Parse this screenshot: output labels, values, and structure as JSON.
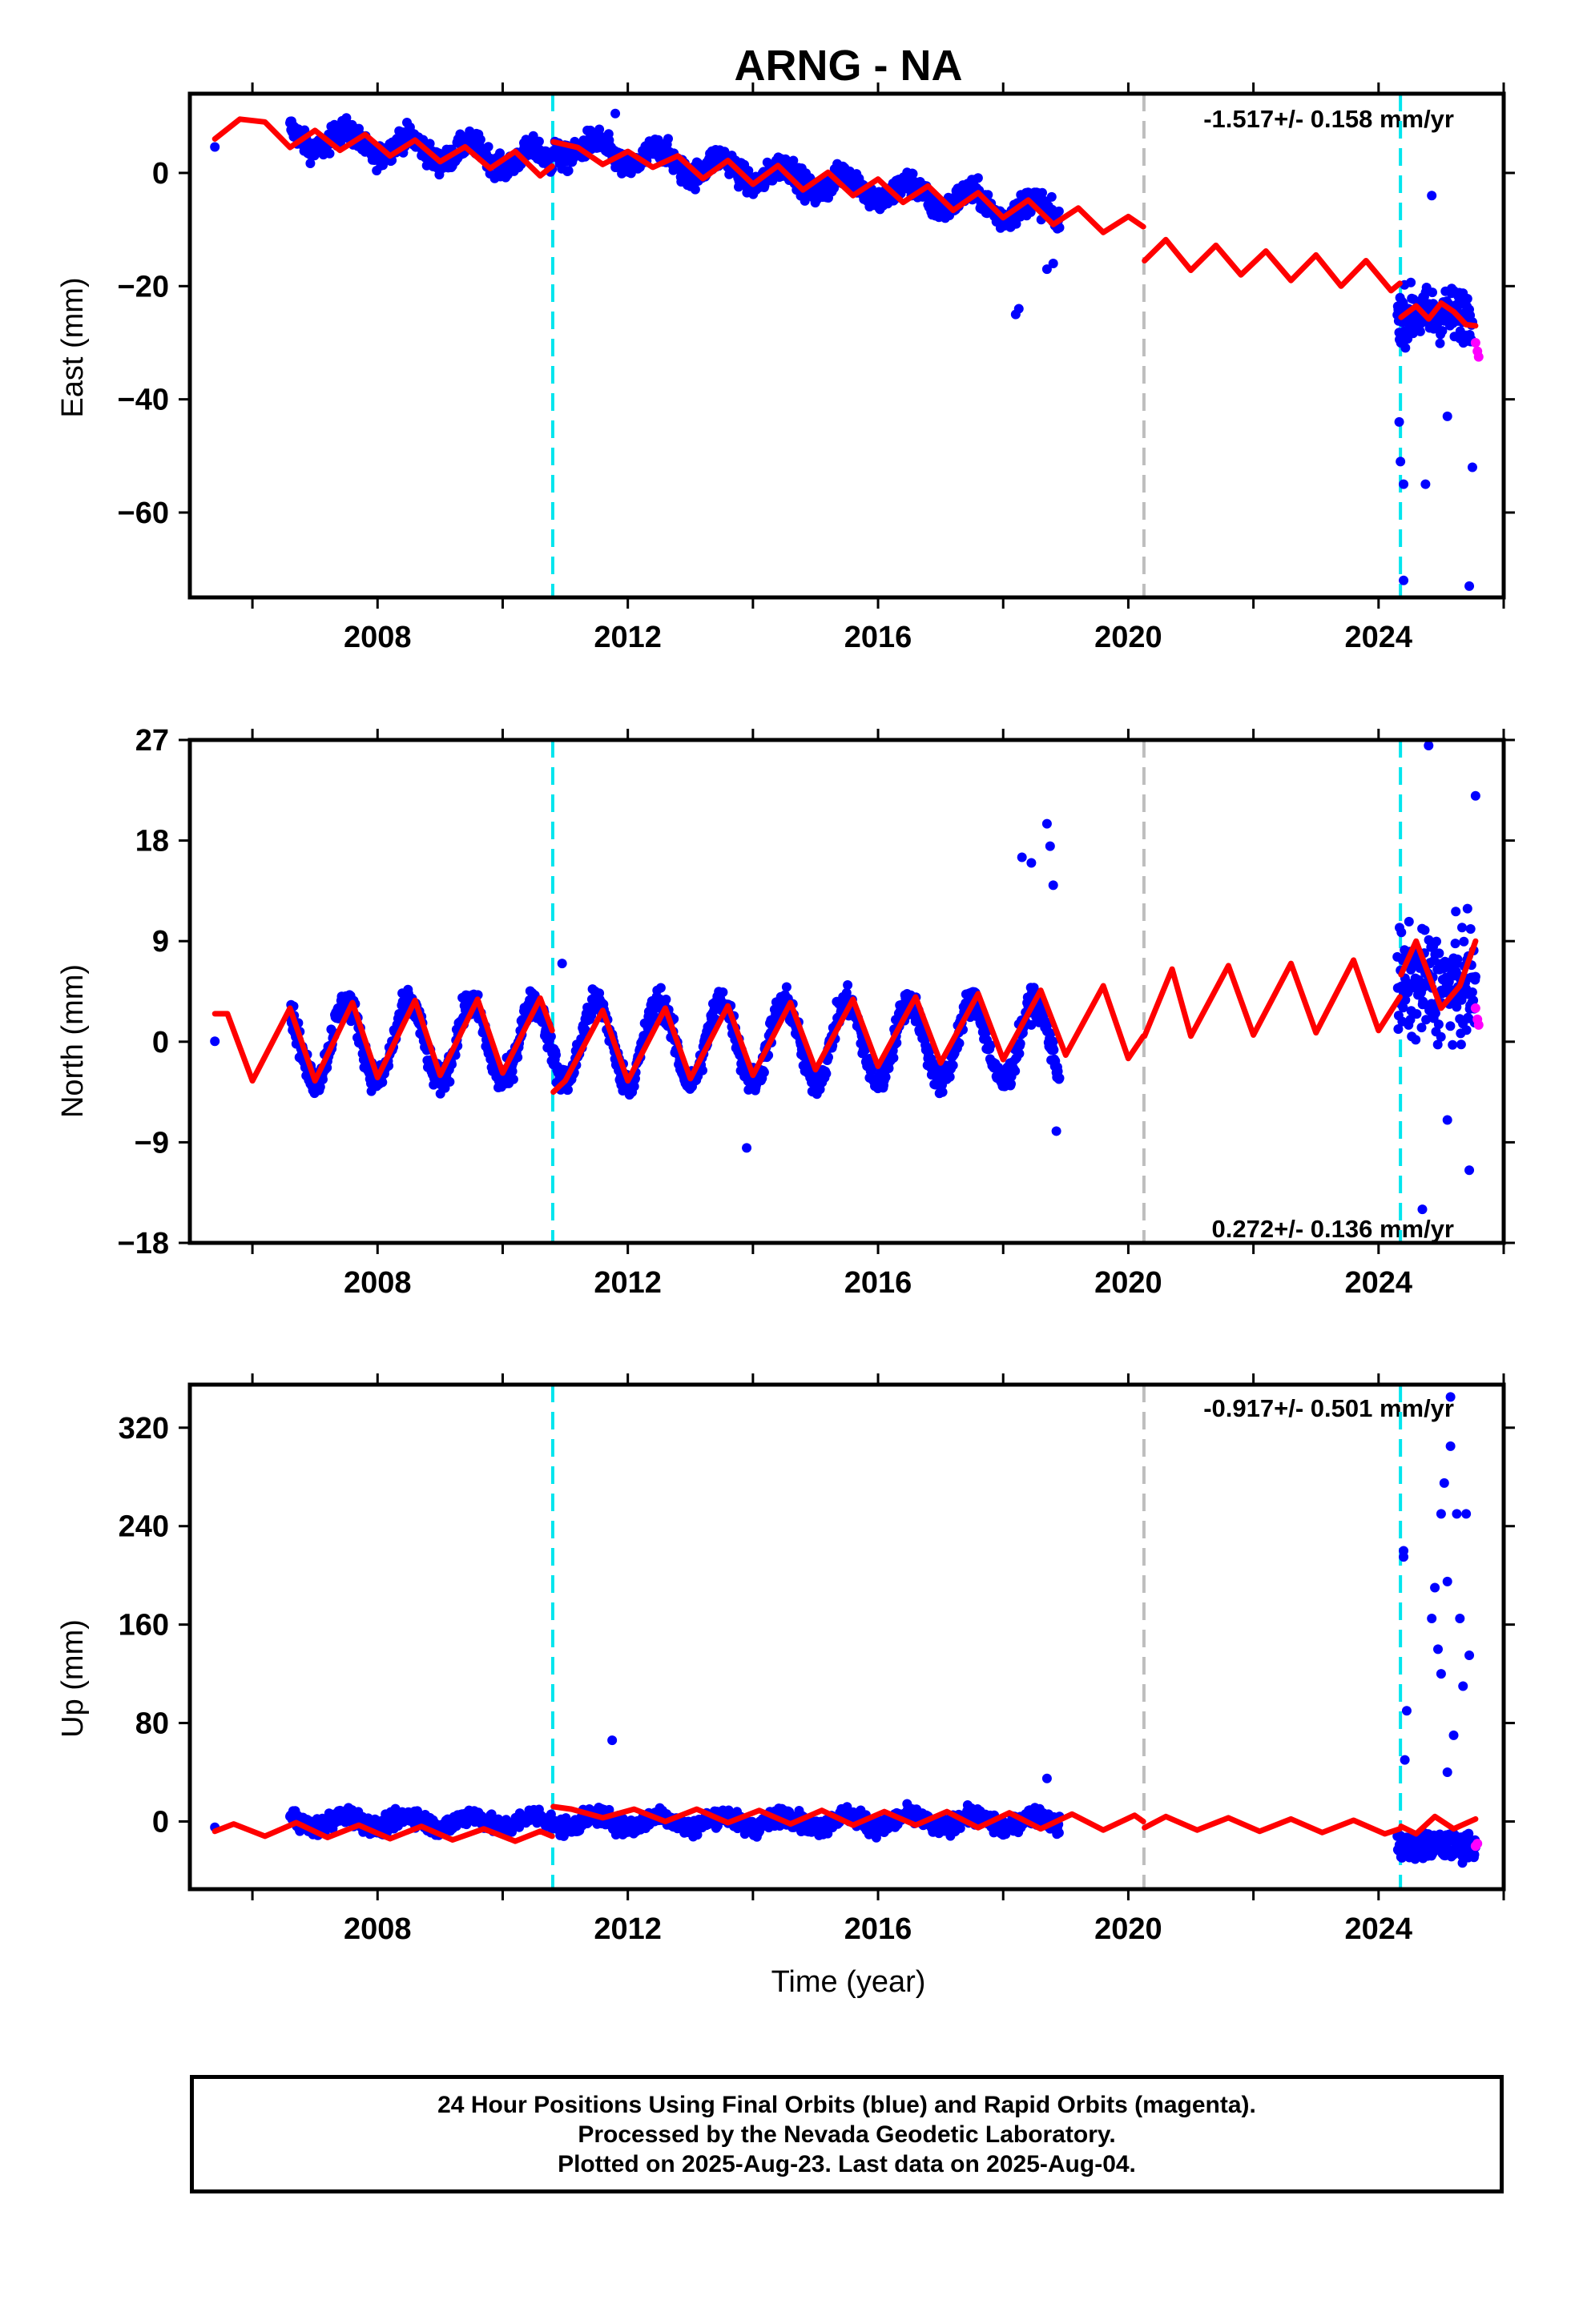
{
  "title": "ARNG - NA",
  "xlabel": "Time (year)",
  "footer": [
    "24 Hour Positions Using Final Orbits (blue) and Rapid Orbits (magenta).",
    "Processed by the Nevada Geodetic Laboratory.",
    "Plotted on 2025-Aug-23. Last data on 2025-Aug-04."
  ],
  "colors": {
    "final_points": "#0000ff",
    "rapid_points": "#ff00ff",
    "model": "#ff0000",
    "event_lines": "#00e5ee",
    "gap_line": "#bebebe"
  },
  "chart_data": [
    {
      "type": "scatter",
      "component": "east",
      "ylabel": "East (mm)",
      "rate": "-1.517+/- 0.158 mm/yr",
      "rate_position": "top-right",
      "xlim": [
        2005.0,
        2026.0
      ],
      "ylim": [
        -75,
        14
      ],
      "xticks": [
        2008,
        2012,
        2016,
        2020,
        2024
      ],
      "yticks": [
        0,
        -20,
        -40,
        -60
      ],
      "event_lines": [
        2010.8,
        2024.35
      ],
      "gap_line": 2020.25,
      "model_segments": [
        {
          "x": [
            2005.4,
            2005.8,
            2006.2,
            2006.6,
            2007.0,
            2007.4,
            2007.8,
            2008.2,
            2008.6,
            2009.0,
            2009.4,
            2009.8,
            2010.2,
            2010.6,
            2010.79
          ],
          "y": [
            6,
            9.5,
            9,
            4.5,
            7.5,
            4,
            6.8,
            3,
            5.8,
            2,
            4.6,
            0.8,
            3.8,
            -0.5,
            1.2
          ]
        },
        {
          "x": [
            2010.81,
            2011.2,
            2011.6,
            2012.0,
            2012.4,
            2012.8,
            2013.2,
            2013.6,
            2014.0,
            2014.4,
            2014.8,
            2015.2,
            2015.6,
            2016.0,
            2016.4,
            2016.8,
            2017.2,
            2017.6,
            2018.0,
            2018.4,
            2018.8,
            2019.2,
            2019.6,
            2020.0,
            2020.24
          ],
          "y": [
            5.5,
            4.5,
            1.5,
            3.8,
            1,
            3,
            -1,
            2.2,
            -2,
            1.3,
            -3,
            0.1,
            -4,
            -1.1,
            -5.2,
            -2.3,
            -6.6,
            -3.5,
            -7.9,
            -4.8,
            -9.1,
            -6.2,
            -10.5,
            -7.7,
            -9.5
          ]
        },
        {
          "x": [
            2020.26,
            2020.6,
            2021.0,
            2021.4,
            2021.8,
            2022.2,
            2022.6,
            2023.0,
            2023.4,
            2023.8,
            2024.2,
            2024.34
          ],
          "y": [
            -15.5,
            -11.8,
            -17.2,
            -12.8,
            -18,
            -13.8,
            -19,
            -14.5,
            -20,
            -15.5,
            -20.8,
            -19.5
          ]
        },
        {
          "x": [
            2024.36,
            2024.6,
            2024.8,
            2025.0,
            2025.2,
            2025.4,
            2025.55
          ],
          "y": [
            -25.5,
            -23.5,
            -25.8,
            -23,
            -24.5,
            -26.8,
            -27
          ]
        }
      ],
      "point_clusters": [
        {
          "from": 2005.4,
          "to": 2005.5,
          "center": 4,
          "spread": 2,
          "amp": 0,
          "density": 8
        },
        {
          "from": 2005.8,
          "to": 2005.9,
          "center": 7,
          "spread": 2,
          "amp": 0,
          "density": 4
        },
        {
          "from": 2006.6,
          "to": 2010.79,
          "center": 4.6,
          "spread": 3.5,
          "amp": 2,
          "trend": -1.1,
          "start": 6.5,
          "density": 120
        },
        {
          "from": 2010.81,
          "to": 2018.9,
          "center": 4.5,
          "spread": 3.8,
          "amp": 2,
          "trend": -1.5,
          "start": 4.8,
          "density": 120
        },
        {
          "from": 2024.3,
          "to": 2025.5,
          "center": -25,
          "spread": 8,
          "amp": 0,
          "density": 140
        }
      ],
      "outliers": [
        [
          2018.2,
          -25
        ],
        [
          2018.25,
          -24
        ],
        [
          2018.7,
          -17
        ],
        [
          2018.8,
          -16
        ],
        [
          2024.33,
          -44
        ],
        [
          2024.35,
          -51
        ],
        [
          2024.4,
          -55
        ],
        [
          2024.4,
          -72
        ],
        [
          2024.75,
          -55
        ],
        [
          2024.85,
          -4
        ],
        [
          2025.1,
          -43
        ],
        [
          2025.45,
          -73
        ],
        [
          2025.5,
          -52
        ],
        [
          2011.8,
          10.5
        ]
      ],
      "rapid_points": [
        [
          2025.55,
          -30
        ],
        [
          2025.58,
          -31.5
        ],
        [
          2025.6,
          -32.5
        ]
      ]
    },
    {
      "type": "scatter",
      "component": "north",
      "ylabel": "North (mm)",
      "rate": "0.272+/- 0.136 mm/yr",
      "rate_position": "bottom-right",
      "xlim": [
        2005.0,
        2026.0
      ],
      "ylim": [
        -18,
        27
      ],
      "xticks": [
        2008,
        2012,
        2016,
        2020,
        2024
      ],
      "yticks": [
        27,
        18,
        9,
        0,
        -9,
        -18
      ],
      "event_lines": [
        2010.8,
        2024.35
      ],
      "gap_line": 2020.25,
      "model_segments": [
        {
          "x": [
            2005.4,
            2005.6,
            2006.0,
            2006.6,
            2007.0,
            2007.6,
            2008.0,
            2008.6,
            2009.0,
            2009.6,
            2010.0,
            2010.6,
            2010.79
          ],
          "y": [
            2.5,
            2.5,
            -3.5,
            3,
            -3.5,
            3.5,
            -3.2,
            3.7,
            -3,
            3.8,
            -2.8,
            3.9,
            1
          ]
        },
        {
          "x": [
            2010.81,
            2011.0,
            2011.6,
            2012.0,
            2012.6,
            2013.0,
            2013.6,
            2014.0,
            2014.6,
            2015.0,
            2015.6,
            2016.0,
            2016.6,
            2017.0,
            2017.6,
            2018.0,
            2018.6,
            2019.0,
            2019.6,
            2020.0,
            2020.24
          ],
          "y": [
            -4.5,
            -3.5,
            2.8,
            -3.5,
            3,
            -3.3,
            3.2,
            -3,
            3.5,
            -2.5,
            3.8,
            -2.2,
            4,
            -1.9,
            4.3,
            -1.6,
            4.6,
            -1.2,
            5,
            -1.5,
            0.5
          ]
        },
        {
          "x": [
            2020.26,
            2020.7,
            2021.0,
            2021.6,
            2022.0,
            2022.6,
            2023.0,
            2023.6,
            2024.0,
            2024.34
          ],
          "y": [
            0.5,
            6.5,
            0.5,
            6.8,
            0.6,
            7,
            0.8,
            7.3,
            1,
            4
          ]
        },
        {
          "x": [
            2024.36,
            2024.6,
            2025.0,
            2025.3,
            2025.55
          ],
          "y": [
            6,
            9,
            3,
            5,
            9
          ]
        }
      ],
      "point_clusters": [
        {
          "from": 2005.4,
          "to": 2005.55,
          "center": 0.5,
          "spread": 1.5,
          "amp": 0,
          "density": 10
        },
        {
          "from": 2005.9,
          "to": 2006.0,
          "center": -2,
          "spread": 1,
          "amp": 0,
          "density": 4
        },
        {
          "from": 2006.6,
          "to": 2010.79,
          "center": 0.3,
          "spread": 2.2,
          "amp": 3.5,
          "trend": 0,
          "start": 0,
          "density": 120
        },
        {
          "from": 2010.81,
          "to": 2018.9,
          "center": 0.4,
          "spread": 2.2,
          "amp": 3.6,
          "trend": 0,
          "start": 0,
          "density": 120
        },
        {
          "from": 2024.3,
          "to": 2025.55,
          "center": 5,
          "spread": 8,
          "amp": 0,
          "density": 140
        }
      ],
      "outliers": [
        [
          2018.3,
          16.5
        ],
        [
          2018.45,
          16
        ],
        [
          2018.7,
          19.5
        ],
        [
          2018.75,
          17.5
        ],
        [
          2018.8,
          14
        ],
        [
          2024.8,
          26.5
        ],
        [
          2025.55,
          22
        ],
        [
          2025.45,
          -11.5
        ],
        [
          2024.7,
          -15
        ],
        [
          2025.1,
          -7
        ],
        [
          2013.9,
          -9.5
        ],
        [
          2010.95,
          7
        ],
        [
          2018.85,
          -8
        ]
      ],
      "rapid_points": [
        [
          2025.55,
          3
        ],
        [
          2025.58,
          2
        ],
        [
          2025.6,
          1.5
        ]
      ]
    },
    {
      "type": "scatter",
      "component": "up",
      "ylabel": "Up (mm)",
      "rate": "-0.917+/- 0.501 mm/yr",
      "rate_position": "top-right",
      "xlim": [
        2005.0,
        2026.0
      ],
      "ylim": [
        -55,
        355
      ],
      "xticks": [
        2008,
        2012,
        2016,
        2020,
        2024
      ],
      "yticks": [
        320,
        240,
        160,
        80,
        0
      ],
      "event_lines": [
        2010.8,
        2024.35
      ],
      "gap_line": 2020.25,
      "model_segments": [
        {
          "x": [
            2005.4,
            2005.7,
            2006.2,
            2006.7,
            2007.2,
            2007.7,
            2008.2,
            2008.7,
            2009.2,
            2009.7,
            2010.2,
            2010.6,
            2010.79
          ],
          "y": [
            -8,
            -2,
            -12,
            -1,
            -13,
            -3,
            -14,
            -4,
            -15,
            -6,
            -16,
            -8,
            -12
          ]
        },
        {
          "x": [
            2010.81,
            2011.1,
            2011.6,
            2012.1,
            2012.6,
            2013.1,
            2013.6,
            2014.1,
            2014.6,
            2015.1,
            2015.6,
            2016.1,
            2016.6,
            2017.1,
            2017.6,
            2018.1,
            2018.6,
            2019.1,
            2019.6,
            2020.1,
            2020.24
          ],
          "y": [
            12,
            10,
            3,
            10,
            0,
            10,
            -1,
            9,
            -2,
            9,
            -3,
            8,
            -3,
            8,
            -5,
            7,
            -6,
            6,
            -7,
            5,
            0
          ]
        },
        {
          "x": [
            2020.26,
            2020.6,
            2021.1,
            2021.6,
            2022.1,
            2022.6,
            2023.1,
            2023.6,
            2024.1,
            2024.34
          ],
          "y": [
            -5,
            4,
            -7,
            3,
            -8,
            2,
            -9,
            1,
            -10,
            -6
          ]
        },
        {
          "x": [
            2024.36,
            2024.6,
            2024.9,
            2025.2,
            2025.55
          ],
          "y": [
            -4,
            -10,
            4,
            -6,
            2
          ]
        }
      ],
      "point_clusters": [
        {
          "from": 2005.4,
          "to": 2005.5,
          "center": -4,
          "spread": 6,
          "amp": 0,
          "density": 8
        },
        {
          "from": 2005.9,
          "to": 2006.0,
          "center": 4,
          "spread": 4,
          "amp": 0,
          "density": 4
        },
        {
          "from": 2006.6,
          "to": 2010.79,
          "center": -8,
          "spread": 12,
          "amp": 5,
          "trend": 0,
          "start": 0,
          "density": 120
        },
        {
          "from": 2010.81,
          "to": 2018.9,
          "center": 5,
          "spread": 12,
          "amp": 5,
          "trend": 0,
          "start": 0,
          "density": 120
        },
        {
          "from": 2024.3,
          "to": 2025.55,
          "center": -20,
          "spread": 18,
          "amp": 0,
          "density": 120
        }
      ],
      "outliers": [
        [
          2011.75,
          66
        ],
        [
          2018.7,
          35
        ],
        [
          2024.4,
          215
        ],
        [
          2024.4,
          220
        ],
        [
          2024.45,
          90
        ],
        [
          2024.42,
          50
        ],
        [
          2024.85,
          165
        ],
        [
          2024.9,
          190
        ],
        [
          2025.0,
          250
        ],
        [
          2025.05,
          275
        ],
        [
          2025.1,
          195
        ],
        [
          2025.15,
          305
        ],
        [
          2025.25,
          250
        ],
        [
          2025.3,
          165
        ],
        [
          2025.4,
          250
        ],
        [
          2025.45,
          135
        ],
        [
          2025.0,
          120
        ],
        [
          2025.2,
          70
        ],
        [
          2025.35,
          110
        ],
        [
          2025.15,
          345
        ],
        [
          2024.95,
          140
        ],
        [
          2025.1,
          40
        ]
      ],
      "rapid_points": [
        [
          2025.55,
          -20
        ],
        [
          2025.58,
          -18
        ]
      ]
    }
  ]
}
